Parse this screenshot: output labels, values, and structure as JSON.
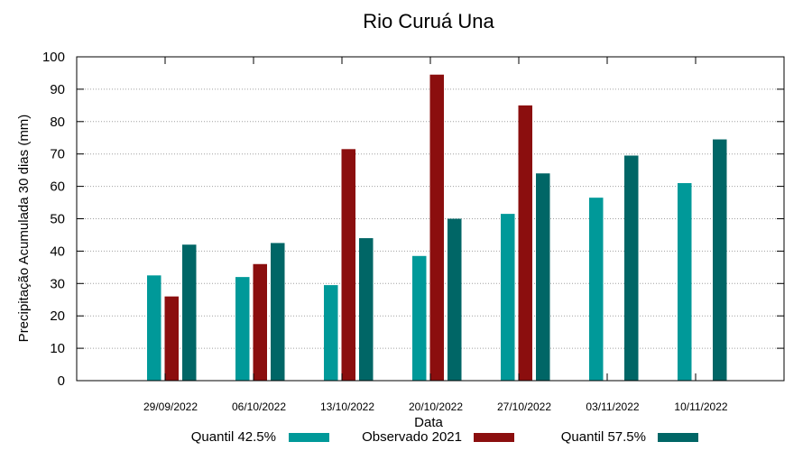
{
  "chart_data": {
    "type": "bar",
    "title": "Rio Curuá Una",
    "xlabel": "Data",
    "ylabel": "Precipitação Acumulada 30 dias (mm)",
    "ylim": [
      0,
      100
    ],
    "yticks": [
      0,
      10,
      20,
      30,
      40,
      50,
      60,
      70,
      80,
      90,
      100
    ],
    "grid": "horizontal dotted",
    "legend_position": "bottom",
    "categories": [
      "29/09/2022",
      "06/10/2022",
      "13/10/2022",
      "20/10/2022",
      "27/10/2022",
      "03/11/2022",
      "10/11/2022"
    ],
    "series": [
      {
        "name": "Quantil 42.5%",
        "color": "#009999",
        "values": [
          32.5,
          32,
          29.5,
          38.5,
          51.5,
          56.5,
          61
        ]
      },
      {
        "name": "Observado 2021",
        "color": "#8B0E0E",
        "values": [
          26,
          36,
          71.5,
          94.5,
          85,
          null,
          null
        ]
      },
      {
        "name": "Quantil 57.5%",
        "color": "#006666",
        "values": [
          42,
          42.5,
          44,
          50,
          64,
          69.5,
          74.5
        ]
      }
    ]
  }
}
